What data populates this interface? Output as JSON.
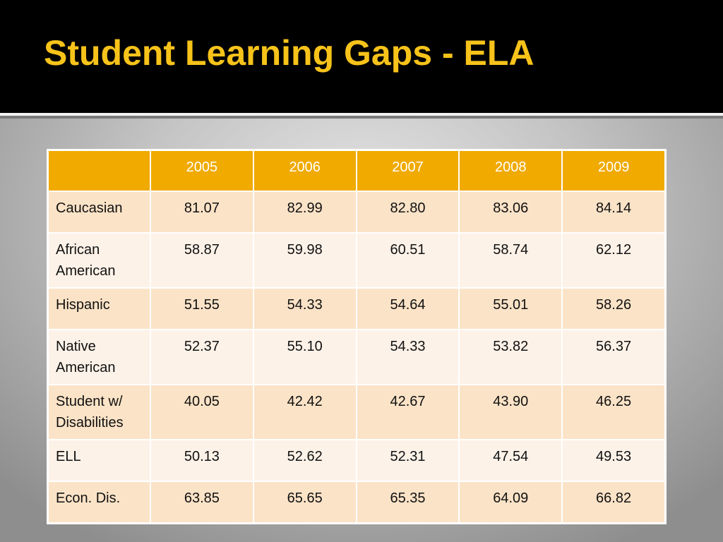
{
  "slide": {
    "title": "Student Learning Gaps - ELA"
  },
  "table": {
    "corner": "",
    "columns": [
      "2005",
      "2006",
      "2007",
      "2008",
      "2009"
    ],
    "rows": [
      {
        "label": "Caucasian",
        "values": [
          "81.07",
          "82.99",
          "82.80",
          "83.06",
          "84.14"
        ]
      },
      {
        "label": "African American",
        "values": [
          "58.87",
          "59.98",
          "60.51",
          "58.74",
          "62.12"
        ]
      },
      {
        "label": "Hispanic",
        "values": [
          "51.55",
          "54.33",
          "54.64",
          "55.01",
          "58.26"
        ]
      },
      {
        "label": "Native American",
        "values": [
          "52.37",
          "55.10",
          "54.33",
          "53.82",
          "56.37"
        ]
      },
      {
        "label": "Student w/ Disabilities",
        "values": [
          "40.05",
          "42.42",
          "42.67",
          "43.90",
          "46.25"
        ]
      },
      {
        "label": "ELL",
        "values": [
          "50.13",
          "52.62",
          "52.31",
          "47.54",
          "49.53"
        ]
      },
      {
        "label": "Econ. Dis.",
        "values": [
          "63.85",
          "65.65",
          "65.35",
          "64.09",
          "66.82"
        ]
      }
    ]
  },
  "colors": {
    "title": "#f7c31a",
    "header_fill": "#f0aa00",
    "row_odd": "#fbe3c7",
    "row_even": "#fdf2e8",
    "title_bar": "#000000"
  }
}
